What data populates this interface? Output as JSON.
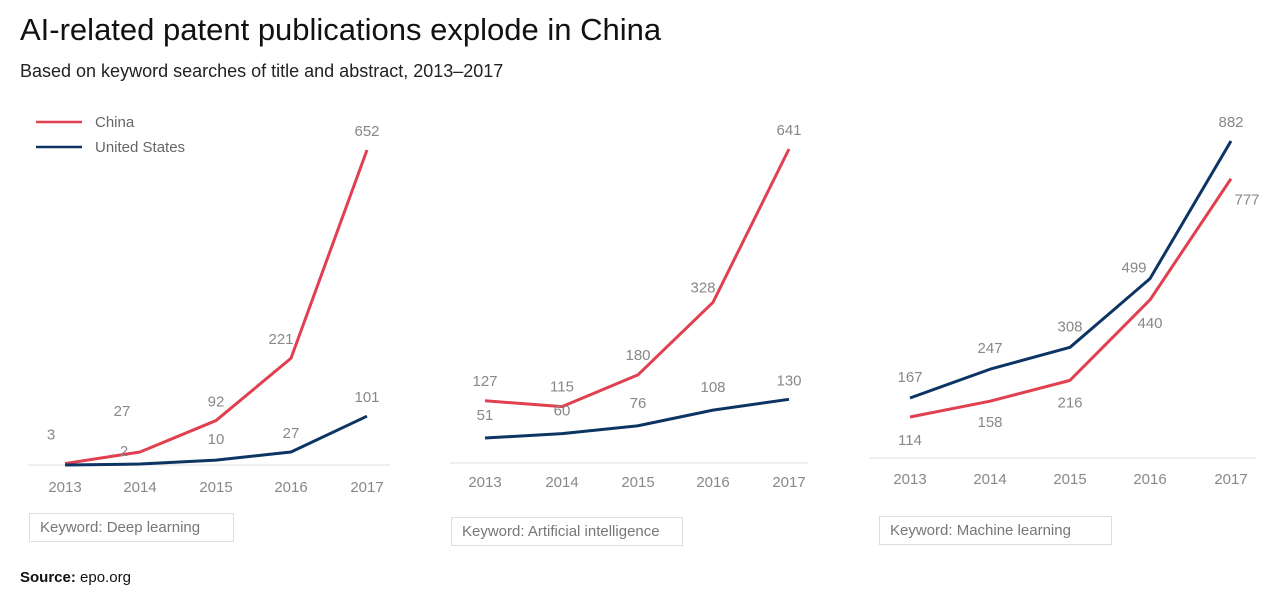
{
  "title": "AI-related patent publications explode in China",
  "subtitle": "Based on keyword searches of title and abstract, 2013–2017",
  "source": {
    "label": "Source:",
    "value": "epo.org"
  },
  "legend": [
    {
      "name": "China",
      "color": "#e0404f"
    },
    {
      "name": "United States",
      "color": "#0d3563"
    }
  ],
  "chart_data": [
    {
      "type": "line",
      "keyword": "Keyword: Deep learning",
      "categories": [
        "2013",
        "2014",
        "2015",
        "2016",
        "2017"
      ],
      "series": [
        {
          "name": "China",
          "values": [
            3,
            27,
            92,
            221,
            652
          ],
          "labels": [
            "3",
            "27",
            "92",
            "221",
            "652"
          ]
        },
        {
          "name": "United States",
          "values": [
            0,
            2,
            10,
            27,
            101
          ],
          "labels": [
            "",
            "2",
            "10",
            "27",
            "101"
          ]
        }
      ],
      "ylim": [
        0,
        652
      ],
      "grid": false,
      "legend": "top-left"
    },
    {
      "type": "line",
      "keyword": "Keyword: Artificial intelligence",
      "categories": [
        "2013",
        "2014",
        "2015",
        "2016",
        "2017"
      ],
      "series": [
        {
          "name": "China",
          "values": [
            127,
            115,
            180,
            328,
            641
          ],
          "labels": [
            "127",
            "115",
            "180",
            "328",
            "641"
          ]
        },
        {
          "name": "United States",
          "values": [
            51,
            60,
            76,
            108,
            130
          ],
          "labels": [
            "51",
            "60",
            "76",
            "108",
            "130"
          ]
        }
      ],
      "ylim": [
        0,
        641
      ],
      "grid": false
    },
    {
      "type": "line",
      "keyword": "Keyword: Machine learning",
      "categories": [
        "2013",
        "2014",
        "2015",
        "2016",
        "2017"
      ],
      "series": [
        {
          "name": "China",
          "values": [
            114,
            158,
            216,
            440,
            777
          ],
          "labels": [
            "114",
            "158",
            "216",
            "440",
            "777"
          ]
        },
        {
          "name": "United States",
          "values": [
            167,
            247,
            308,
            499,
            882
          ],
          "labels": [
            "167",
            "247",
            "308",
            "499",
            "882"
          ]
        }
      ],
      "ylim": [
        0,
        882
      ],
      "grid": false
    }
  ]
}
